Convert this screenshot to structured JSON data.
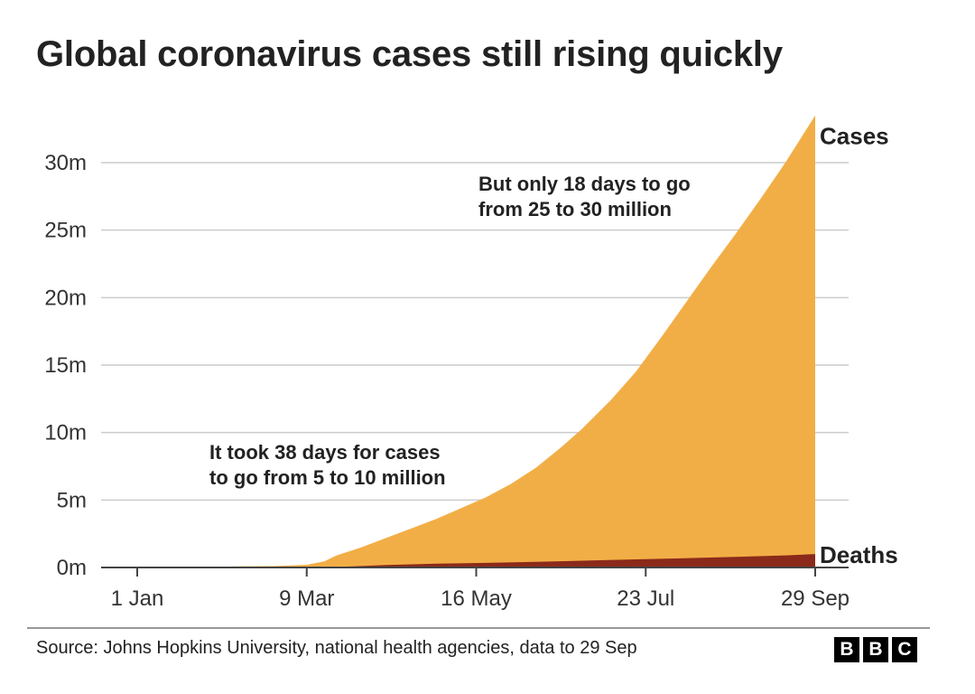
{
  "chart_data": {
    "type": "area",
    "title": "Global coronavirus cases still rising quickly",
    "xlabel": "",
    "ylabel": "",
    "x_range_days": [
      0,
      273
    ],
    "ylim": [
      0,
      33500000
    ],
    "grid": true,
    "y_ticks": [
      {
        "value": 0,
        "label": "0m"
      },
      {
        "value": 5000000,
        "label": "5m"
      },
      {
        "value": 10000000,
        "label": "10m"
      },
      {
        "value": 15000000,
        "label": "15m"
      },
      {
        "value": 20000000,
        "label": "20m"
      },
      {
        "value": 25000000,
        "label": "25m"
      },
      {
        "value": 30000000,
        "label": "30m"
      }
    ],
    "x_ticks": [
      {
        "day": 0,
        "label": "1 Jan"
      },
      {
        "day": 68,
        "label": "9 Mar"
      },
      {
        "day": 136,
        "label": "16 May"
      },
      {
        "day": 204,
        "label": "23 Jul"
      },
      {
        "day": 272,
        "label": "29 Sep"
      }
    ],
    "series": [
      {
        "name": "Cases",
        "color": "#F2AE46",
        "points": [
          [
            0,
            0
          ],
          [
            20,
            10000
          ],
          [
            40,
            80000
          ],
          [
            55,
            110000
          ],
          [
            68,
            200000
          ],
          [
            75,
            450000
          ],
          [
            80,
            900000
          ],
          [
            90,
            1500000
          ],
          [
            100,
            2200000
          ],
          [
            110,
            2900000
          ],
          [
            120,
            3600000
          ],
          [
            130,
            4400000
          ],
          [
            140,
            5200000
          ],
          [
            150,
            6200000
          ],
          [
            160,
            7400000
          ],
          [
            170,
            8900000
          ],
          [
            178,
            10200000
          ],
          [
            190,
            12400000
          ],
          [
            200,
            14500000
          ],
          [
            210,
            17000000
          ],
          [
            220,
            19600000
          ],
          [
            230,
            22200000
          ],
          [
            240,
            24700000
          ],
          [
            250,
            27300000
          ],
          [
            260,
            30000000
          ],
          [
            272,
            33500000
          ]
        ]
      },
      {
        "name": "Deaths",
        "color": "#8B2A1A",
        "points": [
          [
            0,
            0
          ],
          [
            40,
            2000
          ],
          [
            68,
            5000
          ],
          [
            80,
            40000
          ],
          [
            100,
            180000
          ],
          [
            120,
            280000
          ],
          [
            140,
            340000
          ],
          [
            160,
            420000
          ],
          [
            180,
            510000
          ],
          [
            200,
            600000
          ],
          [
            220,
            690000
          ],
          [
            240,
            790000
          ],
          [
            260,
            900000
          ],
          [
            272,
            1000000
          ]
        ]
      }
    ],
    "annotations": [
      {
        "id": "late",
        "lines": [
          "But only 18 days to go",
          "from 25 to 30 million"
        ]
      },
      {
        "id": "early",
        "lines": [
          "It took 38 days for cases",
          "to go from 5 to 10 million"
        ]
      }
    ]
  },
  "footer": {
    "source": "Source: Johns Hopkins University, national health agencies, data to 29 Sep",
    "logo_letters": [
      "B",
      "B",
      "C"
    ]
  }
}
